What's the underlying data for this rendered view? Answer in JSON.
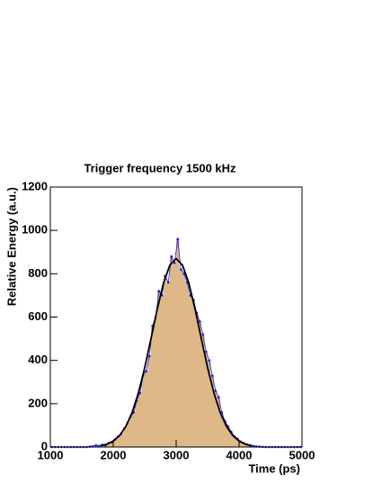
{
  "chart_data": {
    "type": "histogram",
    "title": "Trigger frequency 1500 kHz",
    "x_label": "Time (ps)",
    "y_label": "Relative Energy (a.u.)",
    "bins": [
      1000,
      1050,
      1100,
      1150,
      1200,
      1250,
      1300,
      1350,
      1400,
      1450,
      1500,
      1550,
      1600,
      1650,
      1700,
      1750,
      1800,
      1850,
      1900,
      1950,
      2000,
      2050,
      2100,
      2150,
      2200,
      2250,
      2300,
      2350,
      2400,
      2450,
      2500,
      2550,
      2600,
      2650,
      2700,
      2750,
      2800,
      2850,
      2900,
      2950,
      3000,
      3050,
      3100,
      3150,
      3200,
      3250,
      3300,
      3350,
      3400,
      3450,
      3500,
      3550,
      3600,
      3650,
      3700,
      3750,
      3800,
      3850,
      3900,
      3950,
      4000,
      4050,
      4100,
      4150,
      4200,
      4250,
      4300,
      4350,
      4400,
      4450,
      4500,
      4550,
      4600,
      4650,
      4700,
      4750,
      4800,
      4850,
      4900,
      4950,
      5000
    ],
    "values": [
      0,
      0,
      0,
      0,
      0,
      0,
      0,
      0,
      0,
      0,
      0,
      0,
      2,
      3,
      8,
      5,
      10,
      8,
      18,
      22,
      35,
      48,
      60,
      85,
      110,
      140,
      160,
      215,
      250,
      330,
      350,
      420,
      560,
      600,
      720,
      700,
      790,
      760,
      880,
      850,
      960,
      820,
      800,
      760,
      700,
      680,
      620,
      580,
      520,
      440,
      400,
      330,
      260,
      230,
      160,
      120,
      95,
      70,
      50,
      38,
      25,
      18,
      12,
      8,
      5,
      3,
      2,
      1,
      0,
      0,
      0,
      0,
      0,
      0,
      0,
      0,
      0,
      0,
      0,
      0
    ],
    "color": "#deb887",
    "marker_color": "#1a1adc",
    "fit": {
      "x": [
        1800,
        1900,
        2000,
        2100,
        2200,
        2300,
        2400,
        2500,
        2600,
        2700,
        2800,
        2900,
        3000,
        3100,
        3200,
        3300,
        3400,
        3500,
        3600,
        3700,
        3800,
        3900,
        4000,
        4100,
        4200
      ],
      "values": [
        6,
        13,
        27,
        53,
        95,
        159,
        250,
        366,
        500,
        637,
        758,
        840,
        870,
        840,
        758,
        637,
        500,
        366,
        250,
        159,
        95,
        53,
        27,
        13,
        6
      ],
      "color": "#000000"
    },
    "xlim": [
      1000,
      5000
    ],
    "xticks": [
      1000,
      2000,
      3000,
      4000,
      5000
    ],
    "ylim": [
      0,
      1200
    ],
    "yticks": [
      0,
      200,
      400,
      600,
      800,
      1000,
      1200
    ]
  }
}
